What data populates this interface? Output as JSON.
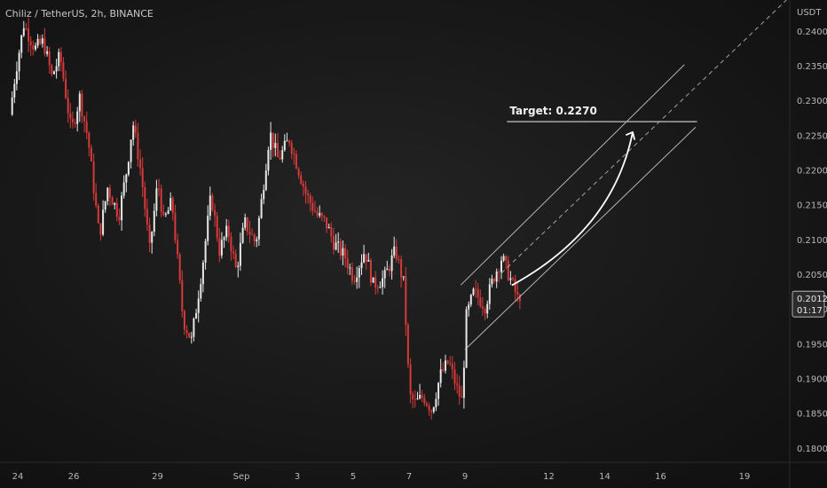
{
  "header": {
    "symbol_line": "Chiliz / TetherUS, 2h, BINANCE"
  },
  "colors": {
    "up": "#e8e8e8",
    "down": "#d63a3a",
    "channel": "#d0d0d0",
    "target_line": "#a8a8a8",
    "arrow": "#ffffff",
    "axis_text": "#b8b8b8"
  },
  "price_tag": {
    "price": "0.2012",
    "countdown": "01:17"
  },
  "annotations": {
    "target_label": "Target: 0.2270",
    "target_price": 0.227
  },
  "chart_data": {
    "type": "candlestick",
    "title": "",
    "ylabel": "USDT",
    "xlabel": "",
    "ylim": [
      0.178,
      0.2445
    ],
    "yticks": [
      0.18,
      0.185,
      0.19,
      0.195,
      0.2,
      0.205,
      0.21,
      0.215,
      0.22,
      0.225,
      0.23,
      0.235,
      0.24
    ],
    "ytick_labels": [
      "0.1800",
      "0.1850",
      "0.1900",
      "0.1950",
      "0.2000",
      "0.2050",
      "0.2100",
      "0.2150",
      "0.2200",
      "0.2250",
      "0.2300",
      "0.2350",
      "0.2400"
    ],
    "xticks": [
      "24",
      "26",
      "29",
      "Sep",
      "3",
      "5",
      "7",
      "9",
      "12",
      "14",
      "16",
      "19"
    ],
    "xtick_positions": [
      0,
      2,
      5,
      8,
      10,
      12,
      14,
      16,
      19,
      21,
      23,
      26
    ],
    "grid": false,
    "last_price": 0.2012,
    "anchors": [
      [
        -0.2,
        0.228
      ],
      [
        0.0,
        0.234
      ],
      [
        0.3,
        0.241
      ],
      [
        0.7,
        0.2375
      ],
      [
        1.0,
        0.2385
      ],
      [
        1.3,
        0.2335
      ],
      [
        1.6,
        0.2365
      ],
      [
        2.0,
        0.2255
      ],
      [
        2.3,
        0.2305
      ],
      [
        2.6,
        0.2245
      ],
      [
        3.0,
        0.2105
      ],
      [
        3.3,
        0.2175
      ],
      [
        3.7,
        0.2135
      ],
      [
        4.0,
        0.2205
      ],
      [
        4.2,
        0.227
      ],
      [
        4.5,
        0.2195
      ],
      [
        4.8,
        0.2085
      ],
      [
        5.1,
        0.2185
      ],
      [
        5.3,
        0.2125
      ],
      [
        5.6,
        0.2155
      ],
      [
        6.0,
        0.1985
      ],
      [
        6.3,
        0.1955
      ],
      [
        6.7,
        0.2065
      ],
      [
        7.0,
        0.2165
      ],
      [
        7.3,
        0.2085
      ],
      [
        7.6,
        0.2115
      ],
      [
        7.9,
        0.2055
      ],
      [
        8.2,
        0.2125
      ],
      [
        8.6,
        0.2095
      ],
      [
        8.8,
        0.2155
      ],
      [
        9.1,
        0.2255
      ],
      [
        9.4,
        0.2215
      ],
      [
        9.8,
        0.2245
      ],
      [
        10.1,
        0.2205
      ],
      [
        10.4,
        0.2165
      ],
      [
        10.8,
        0.2135
      ],
      [
        11.1,
        0.2125
      ],
      [
        11.4,
        0.2095
      ],
      [
        11.8,
        0.2075
      ],
      [
        12.1,
        0.2045
      ],
      [
        12.5,
        0.2085
      ],
      [
        12.8,
        0.2035
      ],
      [
        13.2,
        0.2045
      ],
      [
        13.6,
        0.2085
      ],
      [
        13.9,
        0.2035
      ],
      [
        14.1,
        0.1875
      ],
      [
        14.3,
        0.1865
      ],
      [
        14.6,
        0.1875
      ],
      [
        14.9,
        0.1855
      ],
      [
        15.2,
        0.1905
      ],
      [
        15.5,
        0.1925
      ],
      [
        15.8,
        0.1885
      ],
      [
        16.0,
        0.1865
      ],
      [
        16.1,
        0.1985
      ],
      [
        16.4,
        0.2025
      ],
      [
        16.8,
        0.2005
      ],
      [
        17.1,
        0.2045
      ],
      [
        17.4,
        0.2075
      ],
      [
        17.7,
        0.2045
      ],
      [
        18.0,
        0.2012
      ]
    ]
  }
}
